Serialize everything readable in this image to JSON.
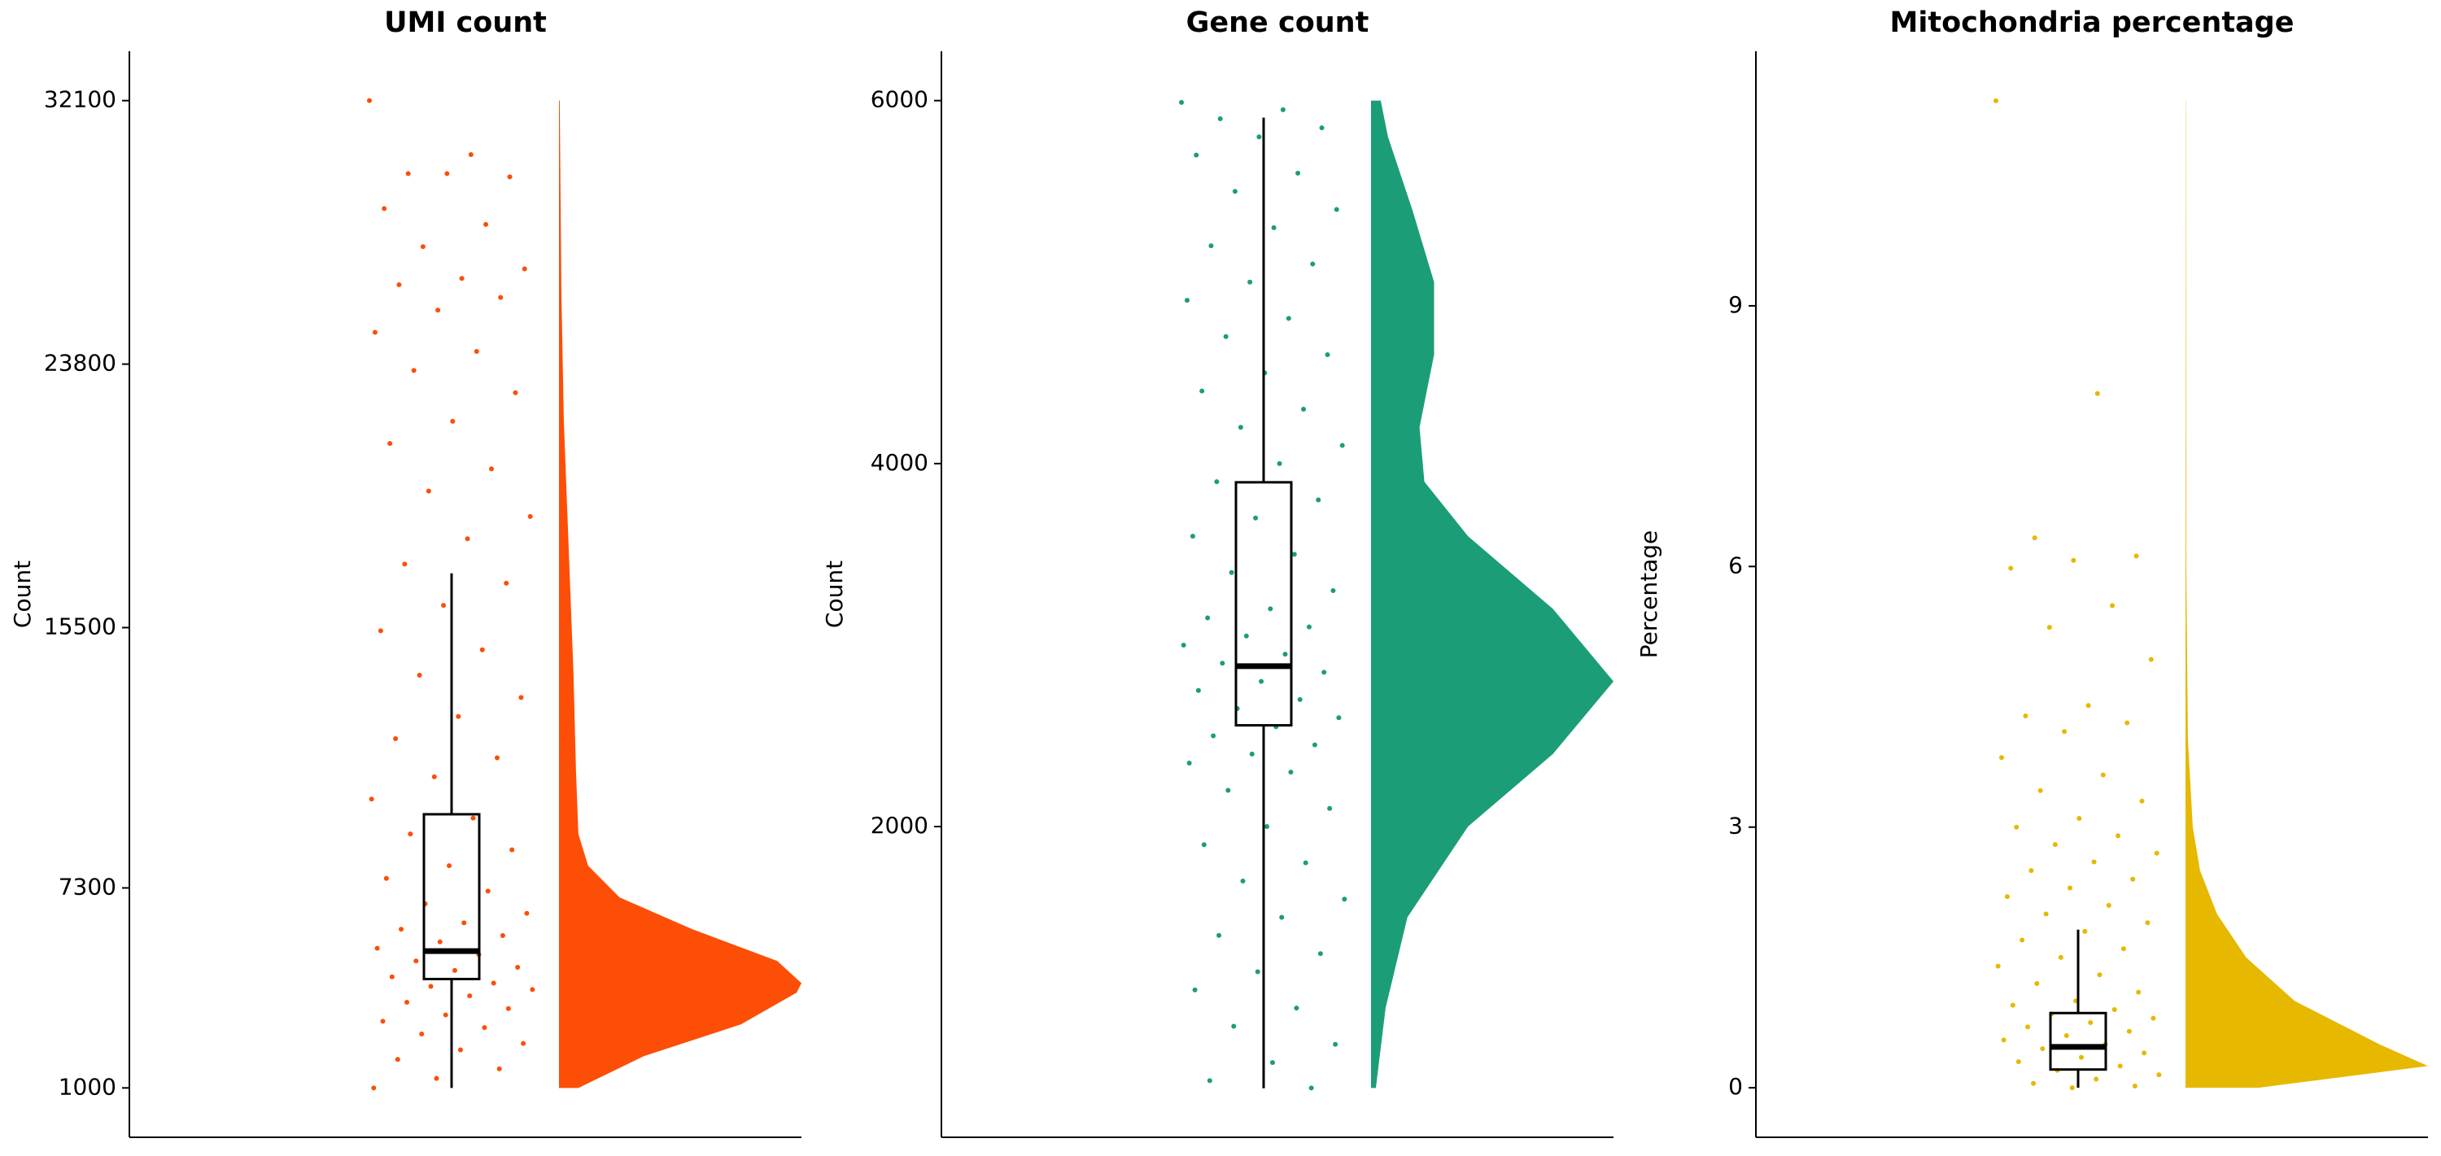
{
  "chart_data": [
    {
      "type": "raincloud",
      "title": "UMI count",
      "y_label": "Count",
      "color": "#fc4e07",
      "ylim": [
        -555,
        33655
      ],
      "yticks": [
        1000,
        7300,
        15500,
        23800,
        32100
      ],
      "box": {
        "min": 1000,
        "q1": 4430,
        "median": 5310,
        "q3": 9620,
        "max": 17210
      },
      "density": {
        "y": [
          1000,
          2000,
          3000,
          4000,
          4300,
          5000,
          6000,
          7000,
          8000,
          9000,
          11000,
          14000,
          18000,
          22000,
          26000,
          32100
        ],
        "width": [
          0.08,
          0.35,
          0.75,
          0.98,
          1.0,
          0.9,
          0.55,
          0.25,
          0.12,
          0.08,
          0.07,
          0.06,
          0.04,
          0.02,
          0.01,
          0.003
        ]
      },
      "points": [
        32100,
        30400,
        29800,
        29700,
        29800,
        28700,
        28200,
        27500,
        26800,
        26500,
        26300,
        25900,
        25500,
        24800,
        24200,
        23600,
        22900,
        22000,
        21300,
        20500,
        19800,
        19000,
        18300,
        17500,
        16900,
        16200,
        15400,
        14800,
        14000,
        13300,
        12700,
        12000,
        11400,
        10800,
        10100,
        9500,
        9000,
        8500,
        8000,
        7600,
        7200,
        6800,
        6500,
        6200,
        6000,
        5800,
        5600,
        5400,
        5200,
        5000,
        4800,
        4700,
        4500,
        4300,
        4200,
        4100,
        3900,
        3700,
        3500,
        3300,
        3100,
        2900,
        2700,
        2400,
        2200,
        1900,
        1600,
        1300,
        1000
      ]
    },
    {
      "type": "raincloud",
      "title": "Gene count",
      "y_label": "Count",
      "color": "#1b9e77",
      "ylim": [
        288,
        6272
      ],
      "yticks": [
        2000,
        4000,
        6000
      ],
      "box": {
        "min": 558,
        "q1": 2558,
        "median": 2884,
        "q3": 3897,
        "max": 5906
      },
      "density": {
        "y": [
          560,
          1000,
          1500,
          2000,
          2400,
          2800,
          3200,
          3600,
          3900,
          4200,
          4600,
          5000,
          5400,
          5800,
          6000
        ],
        "width": [
          0.02,
          0.06,
          0.15,
          0.4,
          0.75,
          1.0,
          0.75,
          0.4,
          0.22,
          0.2,
          0.26,
          0.26,
          0.17,
          0.07,
          0.04
        ]
      },
      "points": [
        5990,
        5950,
        5900,
        5850,
        5800,
        5700,
        5600,
        5500,
        5400,
        5300,
        5200,
        5100,
        5000,
        4900,
        4800,
        4700,
        4600,
        4500,
        4400,
        4300,
        4200,
        4100,
        4000,
        3900,
        3800,
        3700,
        3600,
        3500,
        3400,
        3300,
        3200,
        3150,
        3100,
        3050,
        3000,
        2950,
        2900,
        2850,
        2800,
        2750,
        2700,
        2650,
        2600,
        2550,
        2500,
        2450,
        2400,
        2350,
        2300,
        2200,
        2100,
        2000,
        1900,
        1800,
        1700,
        1600,
        1500,
        1400,
        1300,
        1200,
        1100,
        1000,
        900,
        800,
        700,
        600,
        560
      ]
    },
    {
      "type": "raincloud",
      "title": "Mitochondria percentage",
      "y_label": "Percentage",
      "color": "#e7b800",
      "ylim": [
        -0.57,
        11.93
      ],
      "yticks": [
        0,
        3,
        6,
        9
      ],
      "box": {
        "min": 0,
        "q1": 0.21,
        "median": 0.47,
        "q3": 0.86,
        "max": 1.82
      },
      "density": {
        "y": [
          0,
          0.25,
          0.5,
          1.0,
          1.5,
          2.0,
          2.5,
          3.0,
          4,
          6,
          11.36
        ],
        "width": [
          0.3,
          1.0,
          0.8,
          0.45,
          0.25,
          0.13,
          0.06,
          0.03,
          0.01,
          0.003,
          0.001
        ]
      },
      "points": [
        11.36,
        7.99,
        6.33,
        6.12,
        6.07,
        5.98,
        5.55,
        5.3,
        4.93,
        4.4,
        4.28,
        4.2,
        4.1,
        3.8,
        3.6,
        3.42,
        3.3,
        3.1,
        3.0,
        2.9,
        2.8,
        2.7,
        2.6,
        2.5,
        2.4,
        2.3,
        2.2,
        2.1,
        2.0,
        1.9,
        1.8,
        1.7,
        1.6,
        1.5,
        1.4,
        1.3,
        1.2,
        1.1,
        1.0,
        0.95,
        0.9,
        0.85,
        0.8,
        0.75,
        0.7,
        0.65,
        0.6,
        0.55,
        0.5,
        0.45,
        0.4,
        0.35,
        0.3,
        0.25,
        0.2,
        0.15,
        0.1,
        0.05,
        0.02,
        0
      ]
    }
  ]
}
